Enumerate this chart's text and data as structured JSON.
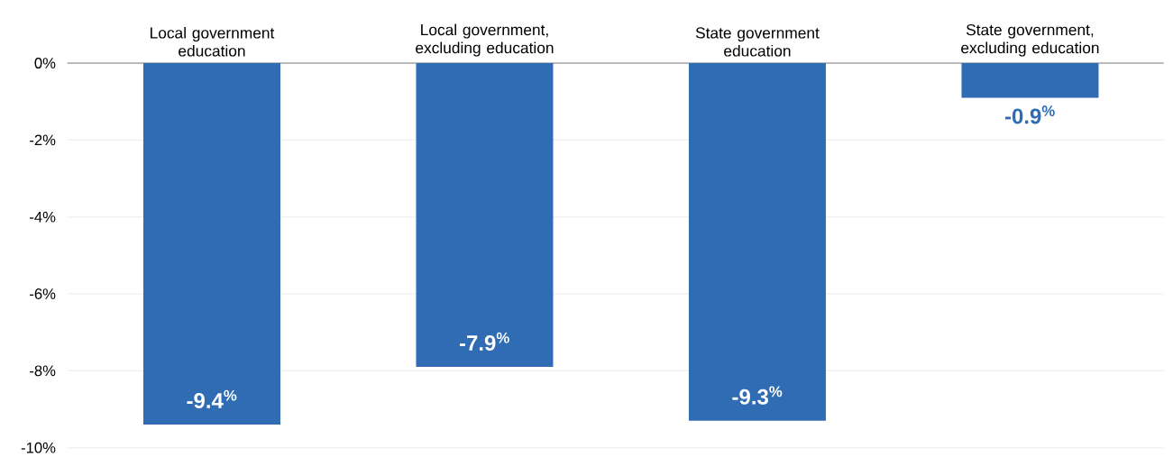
{
  "chart_data": {
    "type": "bar",
    "categories": [
      "Local government education",
      "Local government, excluding education",
      "State government education",
      "State government, excluding education"
    ],
    "values": [
      -9.4,
      -7.9,
      -9.3,
      -0.9
    ],
    "value_labels": [
      "-9.4$^{%}$",
      "-7.9$^{%}$",
      "-9.3$^{%}$",
      "-0.9$^{%}$"
    ],
    "color": "#2f6cb3",
    "ylim": [
      -10,
      0
    ],
    "yticks": [
      {
        "value": 0,
        "label": "0%"
      },
      {
        "value": -2,
        "label": "-2%"
      },
      {
        "value": -4,
        "label": "-4%"
      },
      {
        "value": -6,
        "label": "-6%"
      },
      {
        "value": -8,
        "label": "-8%"
      },
      {
        "value": -10,
        "label": "-10%"
      }
    ],
    "grid": "y"
  }
}
